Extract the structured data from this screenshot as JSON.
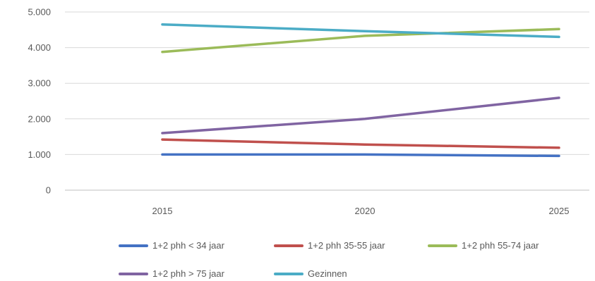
{
  "chart_data": {
    "type": "line",
    "title": "",
    "xlabel": "",
    "ylabel": "",
    "x": [
      "2015",
      "2020",
      "2025"
    ],
    "ylim": [
      0,
      5000
    ],
    "yticks": [
      0,
      1000,
      2000,
      3000,
      4000,
      5000
    ],
    "ytick_labels": [
      "0",
      "1.000",
      "2.000",
      "3.000",
      "4.000",
      "5.000"
    ],
    "grid": true,
    "legend_position": "bottom",
    "series": [
      {
        "name": "1+2 phh < 34 jaar",
        "color": "#4472c4",
        "values": [
          1000,
          1000,
          960
        ]
      },
      {
        "name": "1+2 phh 35-55 jaar",
        "color": "#c0504d",
        "values": [
          1420,
          1280,
          1190
        ]
      },
      {
        "name": "1+2 phh 55-74 jaar",
        "color": "#9bbb59",
        "values": [
          3880,
          4330,
          4520
        ]
      },
      {
        "name": "1+2 phh > 75 jaar",
        "color": "#8064a2",
        "values": [
          1600,
          2000,
          2590
        ]
      },
      {
        "name": "Gezinnen",
        "color": "#4bacc6",
        "values": [
          4650,
          4460,
          4300
        ]
      }
    ]
  }
}
